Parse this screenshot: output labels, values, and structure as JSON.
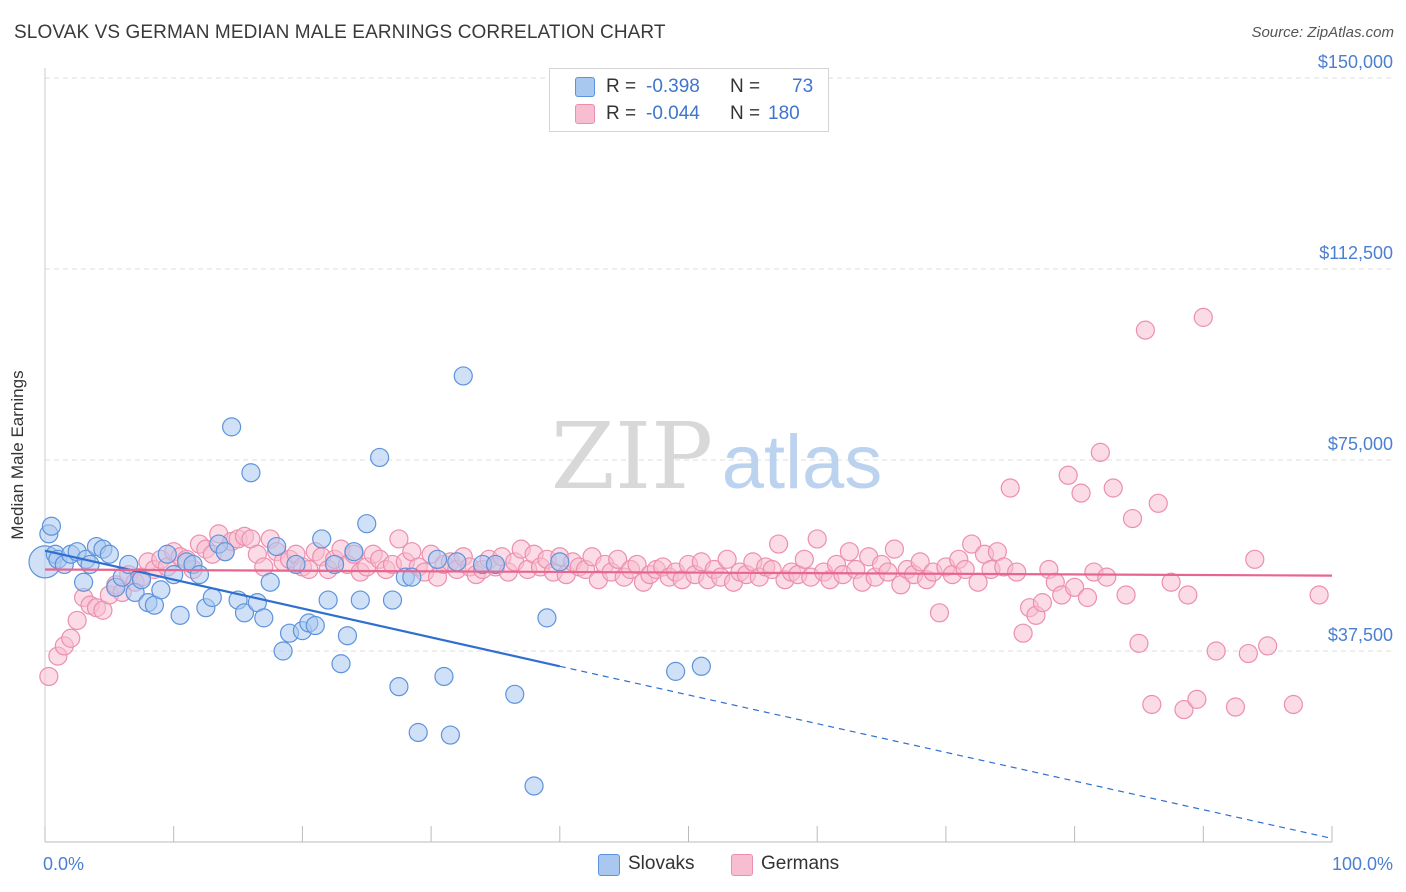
{
  "title": "SLOVAK VS GERMAN MEDIAN MALE EARNINGS CORRELATION CHART",
  "source": "Source: ZipAtlas.com",
  "watermark": {
    "zip": "ZIP",
    "atlas": "atlas"
  },
  "legend": {
    "slovaks": {
      "r_label": "R =",
      "r_value": "-0.398",
      "n_label": "N =",
      "n_value": "73"
    },
    "germans": {
      "r_label": "R =",
      "r_value": "-0.044",
      "n_label": "N =",
      "n_value": "180"
    }
  },
  "colors": {
    "slovaks_fill": "#a9c8f0",
    "slovaks_stroke": "#5d93dc",
    "slovaks_line": "#2f6fd0",
    "germans_fill": "#f7bdd0",
    "germans_stroke": "#ec8fae",
    "germans_line": "#e8658f",
    "tick_text": "#4a7fd1",
    "grid": "#dddddd"
  },
  "chart_data": {
    "type": "scatter",
    "title": "SLOVAK VS GERMAN MEDIAN MALE EARNINGS CORRELATION CHART",
    "xlabel": "",
    "ylabel": "Median Male Earnings",
    "xlim": [
      0,
      100
    ],
    "ylim": [
      0,
      155000
    ],
    "x_tick_labels": [
      "0.0%",
      "100.0%"
    ],
    "y_ticks": [
      37500,
      75000,
      112500,
      150000
    ],
    "y_tick_labels": [
      "$37,500",
      "$75,000",
      "$112,500",
      "$150,000"
    ],
    "grid": true,
    "legend_position": "top-center",
    "series": [
      {
        "name": "Slovaks",
        "r": -0.398,
        "n": 73,
        "trend": {
          "x0": 0,
          "y0": 57200,
          "x1": 40,
          "y1": 34500,
          "dashed_to_x": 100,
          "dashed_to_y": 700
        },
        "points": [
          [
            0.0,
            55000
          ],
          [
            0.3,
            60500
          ],
          [
            0.5,
            62000
          ],
          [
            0.8,
            56500
          ],
          [
            1.0,
            55500
          ],
          [
            1.5,
            54500
          ],
          [
            2.0,
            56500
          ],
          [
            2.5,
            57000
          ],
          [
            3.0,
            51000
          ],
          [
            3.2,
            55500
          ],
          [
            3.5,
            54500
          ],
          [
            4.0,
            58000
          ],
          [
            4.5,
            57500
          ],
          [
            5.0,
            56500
          ],
          [
            5.5,
            50000
          ],
          [
            6.0,
            52000
          ],
          [
            6.5,
            54500
          ],
          [
            7.0,
            49000
          ],
          [
            7.5,
            51500
          ],
          [
            8.0,
            47000
          ],
          [
            8.5,
            46500
          ],
          [
            9.0,
            49500
          ],
          [
            9.5,
            56500
          ],
          [
            10.0,
            52500
          ],
          [
            10.5,
            44500
          ],
          [
            11.0,
            55000
          ],
          [
            11.5,
            54500
          ],
          [
            12.0,
            52500
          ],
          [
            12.5,
            46000
          ],
          [
            13.0,
            48000
          ],
          [
            13.5,
            58500
          ],
          [
            14.0,
            57000
          ],
          [
            14.5,
            81500
          ],
          [
            15.0,
            47500
          ],
          [
            15.5,
            45000
          ],
          [
            16.0,
            72500
          ],
          [
            16.5,
            47000
          ],
          [
            17.0,
            44000
          ],
          [
            17.5,
            51000
          ],
          [
            18.0,
            58000
          ],
          [
            18.5,
            37500
          ],
          [
            19.0,
            41000
          ],
          [
            19.5,
            54500
          ],
          [
            20.0,
            41500
          ],
          [
            20.5,
            43000
          ],
          [
            21.0,
            42500
          ],
          [
            21.5,
            59500
          ],
          [
            22.0,
            47500
          ],
          [
            22.5,
            54500
          ],
          [
            23.0,
            35000
          ],
          [
            23.5,
            40500
          ],
          [
            24.0,
            57000
          ],
          [
            24.5,
            47500
          ],
          [
            25.0,
            62500
          ],
          [
            26.0,
            75500
          ],
          [
            27.0,
            47500
          ],
          [
            27.5,
            30500
          ],
          [
            28.0,
            52000
          ],
          [
            28.5,
            52000
          ],
          [
            29.0,
            21500
          ],
          [
            30.5,
            55500
          ],
          [
            31.0,
            32500
          ],
          [
            31.5,
            21000
          ],
          [
            32.0,
            55000
          ],
          [
            32.5,
            91500
          ],
          [
            34.0,
            54500
          ],
          [
            35.0,
            54500
          ],
          [
            36.5,
            29000
          ],
          [
            38.0,
            11000
          ],
          [
            39.0,
            44000
          ],
          [
            49.0,
            33500
          ],
          [
            51.0,
            34500
          ],
          [
            40.0,
            55000
          ]
        ]
      },
      {
        "name": "Germans",
        "r": -0.044,
        "n": 180,
        "trend": {
          "x0": 0,
          "y0": 53500,
          "x1": 100,
          "y1": 52300
        },
        "points": [
          [
            0.3,
            32500
          ],
          [
            1.0,
            36500
          ],
          [
            1.5,
            38500
          ],
          [
            2.0,
            40000
          ],
          [
            2.5,
            43500
          ],
          [
            3.0,
            48000
          ],
          [
            3.5,
            46500
          ],
          [
            4.0,
            46000
          ],
          [
            4.5,
            45500
          ],
          [
            5.0,
            48500
          ],
          [
            5.5,
            50500
          ],
          [
            6.0,
            49000
          ],
          [
            6.5,
            52500
          ],
          [
            7.0,
            51000
          ],
          [
            7.5,
            52000
          ],
          [
            8.0,
            55000
          ],
          [
            8.5,
            53500
          ],
          [
            9.0,
            55500
          ],
          [
            9.5,
            54000
          ],
          [
            10.0,
            57000
          ],
          [
            10.5,
            56000
          ],
          [
            11.0,
            55500
          ],
          [
            11.5,
            53500
          ],
          [
            12.0,
            58500
          ],
          [
            12.5,
            57500
          ],
          [
            13.0,
            56500
          ],
          [
            13.5,
            60500
          ],
          [
            14.0,
            57000
          ],
          [
            14.5,
            59000
          ],
          [
            15.0,
            59500
          ],
          [
            15.5,
            60000
          ],
          [
            16.0,
            59500
          ],
          [
            16.5,
            56500
          ],
          [
            17.0,
            54000
          ],
          [
            17.5,
            59500
          ],
          [
            18.0,
            57000
          ],
          [
            18.5,
            55000
          ],
          [
            19.0,
            55500
          ],
          [
            19.5,
            56500
          ],
          [
            20.0,
            54000
          ],
          [
            20.5,
            53500
          ],
          [
            21.0,
            57000
          ],
          [
            21.5,
            56000
          ],
          [
            22.0,
            53500
          ],
          [
            22.5,
            55500
          ],
          [
            23.0,
            57500
          ],
          [
            23.5,
            54500
          ],
          [
            24.0,
            56500
          ],
          [
            24.5,
            53000
          ],
          [
            25.0,
            54000
          ],
          [
            25.5,
            56500
          ],
          [
            26.0,
            55500
          ],
          [
            26.5,
            53500
          ],
          [
            27.0,
            54500
          ],
          [
            27.5,
            59500
          ],
          [
            28.0,
            55000
          ],
          [
            28.5,
            57000
          ],
          [
            29.0,
            54000
          ],
          [
            29.5,
            53000
          ],
          [
            30.0,
            56500
          ],
          [
            30.5,
            52000
          ],
          [
            31.0,
            54500
          ],
          [
            31.5,
            55000
          ],
          [
            32.0,
            53500
          ],
          [
            32.5,
            56000
          ],
          [
            33.0,
            54000
          ],
          [
            33.5,
            52500
          ],
          [
            34.0,
            53500
          ],
          [
            34.5,
            55500
          ],
          [
            35.0,
            54000
          ],
          [
            35.5,
            56000
          ],
          [
            36.0,
            53000
          ],
          [
            36.5,
            55000
          ],
          [
            37.0,
            57500
          ],
          [
            37.5,
            53500
          ],
          [
            38.0,
            56500
          ],
          [
            38.5,
            54000
          ],
          [
            39.0,
            55500
          ],
          [
            39.5,
            53000
          ],
          [
            40.0,
            56000
          ],
          [
            40.5,
            52500
          ],
          [
            41.0,
            55000
          ],
          [
            41.5,
            54000
          ],
          [
            42.0,
            53500
          ],
          [
            42.5,
            56000
          ],
          [
            43.0,
            51500
          ],
          [
            43.5,
            54500
          ],
          [
            44.0,
            53000
          ],
          [
            44.5,
            55500
          ],
          [
            45.0,
            52000
          ],
          [
            45.5,
            53500
          ],
          [
            46.0,
            54500
          ],
          [
            46.5,
            51000
          ],
          [
            47.0,
            52500
          ],
          [
            47.5,
            53500
          ],
          [
            48.0,
            54000
          ],
          [
            48.5,
            52000
          ],
          [
            49.0,
            53000
          ],
          [
            49.5,
            51500
          ],
          [
            50.0,
            54500
          ],
          [
            50.5,
            52500
          ],
          [
            51.0,
            55000
          ],
          [
            51.5,
            51500
          ],
          [
            52.0,
            53500
          ],
          [
            52.5,
            52000
          ],
          [
            53.0,
            55500
          ],
          [
            53.5,
            51000
          ],
          [
            54.0,
            53000
          ],
          [
            54.5,
            52500
          ],
          [
            55.0,
            55000
          ],
          [
            55.5,
            52000
          ],
          [
            56.0,
            54000
          ],
          [
            56.5,
            53500
          ],
          [
            57.0,
            58500
          ],
          [
            57.5,
            51500
          ],
          [
            58.0,
            53000
          ],
          [
            58.5,
            52500
          ],
          [
            59.0,
            55500
          ],
          [
            59.5,
            52000
          ],
          [
            60.0,
            59500
          ],
          [
            60.5,
            53000
          ],
          [
            61.0,
            51500
          ],
          [
            61.5,
            54500
          ],
          [
            62.0,
            52500
          ],
          [
            62.5,
            57000
          ],
          [
            63.0,
            53500
          ],
          [
            63.5,
            51000
          ],
          [
            64.0,
            56000
          ],
          [
            64.5,
            52000
          ],
          [
            65.0,
            54500
          ],
          [
            65.5,
            53000
          ],
          [
            66.0,
            57500
          ],
          [
            66.5,
            50500
          ],
          [
            67.0,
            53500
          ],
          [
            67.5,
            52500
          ],
          [
            68.0,
            55000
          ],
          [
            68.5,
            51500
          ],
          [
            69.0,
            53000
          ],
          [
            69.5,
            45000
          ],
          [
            70.0,
            54000
          ],
          [
            70.5,
            52500
          ],
          [
            71.0,
            55500
          ],
          [
            71.5,
            53500
          ],
          [
            72.0,
            58500
          ],
          [
            72.5,
            51000
          ],
          [
            73.0,
            56500
          ],
          [
            73.5,
            53500
          ],
          [
            74.0,
            57000
          ],
          [
            74.5,
            54000
          ],
          [
            75.0,
            69500
          ],
          [
            75.5,
            53000
          ],
          [
            76.0,
            41000
          ],
          [
            76.5,
            46000
          ],
          [
            77.0,
            44500
          ],
          [
            77.5,
            47000
          ],
          [
            78.0,
            53500
          ],
          [
            78.5,
            51000
          ],
          [
            79.0,
            48500
          ],
          [
            79.5,
            72000
          ],
          [
            80.0,
            50000
          ],
          [
            80.5,
            68500
          ],
          [
            81.0,
            48000
          ],
          [
            81.5,
            53000
          ],
          [
            82.0,
            76500
          ],
          [
            82.5,
            52000
          ],
          [
            83.0,
            69500
          ],
          [
            84.0,
            48500
          ],
          [
            84.5,
            63500
          ],
          [
            85.0,
            39000
          ],
          [
            85.5,
            100500
          ],
          [
            86.0,
            27000
          ],
          [
            86.5,
            66500
          ],
          [
            87.5,
            51000
          ],
          [
            88.5,
            26000
          ],
          [
            88.8,
            48500
          ],
          [
            89.5,
            28000
          ],
          [
            90.0,
            103000
          ],
          [
            91.0,
            37500
          ],
          [
            92.5,
            26500
          ],
          [
            93.5,
            37000
          ],
          [
            94.0,
            55500
          ],
          [
            95.0,
            38500
          ],
          [
            97.0,
            27000
          ],
          [
            99.0,
            48500
          ]
        ]
      }
    ]
  },
  "bottom_legend": {
    "slovaks": "Slovaks",
    "germans": "Germans"
  }
}
